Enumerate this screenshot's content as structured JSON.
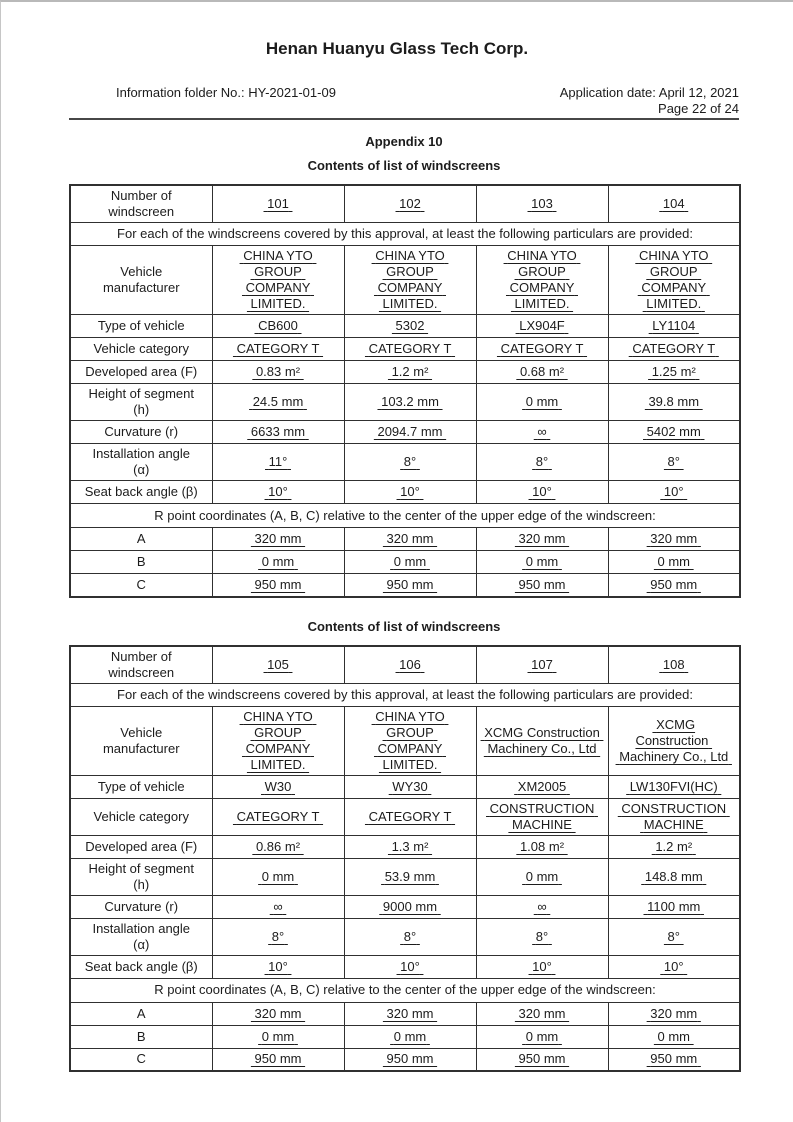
{
  "header": {
    "company": "Henan Huanyu Glass Tech Corp.",
    "info_folder": "Information folder No.: HY-2021-01-09",
    "application_date": "Application date: April 12, 2021",
    "page_number": "Page 22 of 24",
    "appendix": "Appendix 10"
  },
  "tables": [
    {
      "heading": "Contents of list of windscreens",
      "number_label": [
        "Number of",
        "windscreen"
      ],
      "numbers": [
        "101",
        "102",
        "103",
        "104"
      ],
      "note": "For each of the windscreens covered by this approval, at least the following particulars are provided:",
      "rows": [
        {
          "label": [
            "Vehicle",
            "manufacturer"
          ],
          "values": [
            [
              "CHINA YTO",
              "GROUP",
              "COMPANY",
              "LIMITED."
            ],
            [
              "CHINA YTO",
              "GROUP",
              "COMPANY",
              "LIMITED."
            ],
            [
              "CHINA YTO",
              "GROUP",
              "COMPANY",
              "LIMITED."
            ],
            [
              "CHINA YTO",
              "GROUP",
              "COMPANY",
              "LIMITED."
            ]
          ]
        },
        {
          "label": "Type of vehicle",
          "values": [
            "CB600",
            "5302",
            "LX904F",
            "LY1104"
          ]
        },
        {
          "label": "Vehicle category",
          "values": [
            "CATEGORY T",
            "CATEGORY T",
            "CATEGORY T",
            "CATEGORY T"
          ]
        },
        {
          "label": "Developed area (F)",
          "values": [
            "0.83 m²",
            "1.2 m²",
            "0.68 m²",
            "1.25 m²"
          ]
        },
        {
          "label": [
            "Height of segment",
            "(h)"
          ],
          "values": [
            "24.5 mm",
            "103.2 mm",
            "0 mm",
            "39.8 mm"
          ]
        },
        {
          "label": "Curvature (r)",
          "values": [
            "6633 mm",
            "2094.7 mm",
            "∞",
            "5402 mm"
          ]
        },
        {
          "label": [
            "Installation angle",
            "(α)"
          ],
          "values": [
            "11°",
            "8°",
            "8°",
            "8°"
          ]
        },
        {
          "label": "Seat back angle (β)",
          "values": [
            "10°",
            "10°",
            "10°",
            "10°"
          ]
        }
      ],
      "r_point_note": "R point coordinates (A, B, C) relative to the center of the upper edge of the windscreen:",
      "coords": [
        {
          "label": "A",
          "values": [
            "320 mm",
            "320 mm",
            "320 mm",
            "320 mm"
          ]
        },
        {
          "label": "B",
          "values": [
            "0 mm",
            "0 mm",
            "0 mm",
            "0 mm"
          ]
        },
        {
          "label": "C",
          "values": [
            "950 mm",
            "950 mm",
            "950 mm",
            "950 mm"
          ]
        }
      ]
    },
    {
      "heading": "Contents of list of windscreens",
      "number_label": [
        "Number of",
        "windscreen"
      ],
      "numbers": [
        "105",
        "106",
        "107",
        "108"
      ],
      "note": "For each of the windscreens covered by this approval, at least the following particulars are provided:",
      "rows": [
        {
          "label": [
            "Vehicle",
            "manufacturer"
          ],
          "values": [
            [
              "CHINA YTO",
              "GROUP",
              "COMPANY",
              "LIMITED."
            ],
            [
              "CHINA YTO",
              "GROUP",
              "COMPANY",
              "LIMITED."
            ],
            [
              "XCMG Construction",
              "Machinery Co., Ltd"
            ],
            [
              "XCMG Construction",
              "Machinery Co., Ltd"
            ]
          ]
        },
        {
          "label": "Type of vehicle",
          "values": [
            "W30",
            "WY30",
            "XM2005",
            "LW130FVI(HC)"
          ]
        },
        {
          "label": "Vehicle category",
          "values": [
            "CATEGORY T",
            "CATEGORY T",
            [
              "CONSTRUCTION",
              "MACHINE"
            ],
            [
              "CONSTRUCTION",
              "MACHINE"
            ]
          ]
        },
        {
          "label": "Developed area (F)",
          "values": [
            "0.86 m²",
            "1.3 m²",
            "1.08 m²",
            "1.2 m²"
          ]
        },
        {
          "label": [
            "Height of segment",
            "(h)"
          ],
          "values": [
            "0 mm",
            "53.9 mm",
            "0 mm",
            "148.8 mm"
          ]
        },
        {
          "label": "Curvature (r)",
          "values": [
            "∞",
            "9000 mm",
            "∞",
            "1100 mm"
          ]
        },
        {
          "label": [
            "Installation angle",
            "(α)"
          ],
          "values": [
            "8°",
            "8°",
            "8°",
            "8°"
          ]
        },
        {
          "label": "Seat back angle (β)",
          "values": [
            "10°",
            "10°",
            "10°",
            "10°"
          ]
        }
      ],
      "r_point_note": "R point coordinates (A, B, C) relative to the center of the upper edge of the windscreen:",
      "coords": [
        {
          "label": "A",
          "values": [
            "320 mm",
            "320 mm",
            "320 mm",
            "320 mm"
          ]
        },
        {
          "label": "B",
          "values": [
            "0 mm",
            "0 mm",
            "0 mm",
            "0 mm"
          ]
        },
        {
          "label": "C",
          "values": [
            "950 mm",
            "950 mm",
            "950 mm",
            "950 mm"
          ]
        }
      ]
    }
  ]
}
